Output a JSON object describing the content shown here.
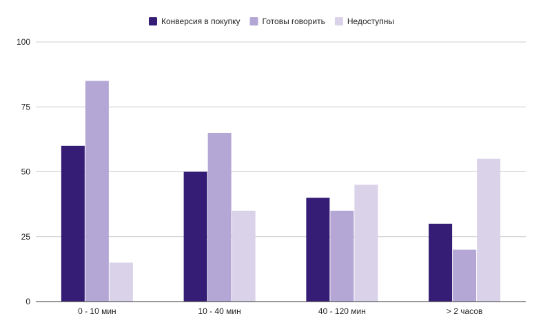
{
  "chart_data": {
    "type": "bar",
    "title": "",
    "xlabel": "",
    "ylabel": "",
    "categories": [
      "0 - 10 мин",
      "10 - 40 мин",
      "40 - 120 мин",
      "> 2 часов"
    ],
    "series": [
      {
        "name": "Конверсия в покупку",
        "color": "#351c75",
        "values": [
          60,
          50,
          40,
          30
        ]
      },
      {
        "name": "Готовы говорить",
        "color": "#b4a7d6",
        "values": [
          85,
          65,
          35,
          20
        ]
      },
      {
        "name": "Недоступны",
        "color": "#d9d2e9",
        "values": [
          15,
          35,
          45,
          55
        ]
      }
    ],
    "ylim": [
      0,
      100
    ],
    "yticks": [
      0,
      25,
      50,
      75,
      100
    ],
    "grid": true,
    "legend_position": "top-center"
  }
}
